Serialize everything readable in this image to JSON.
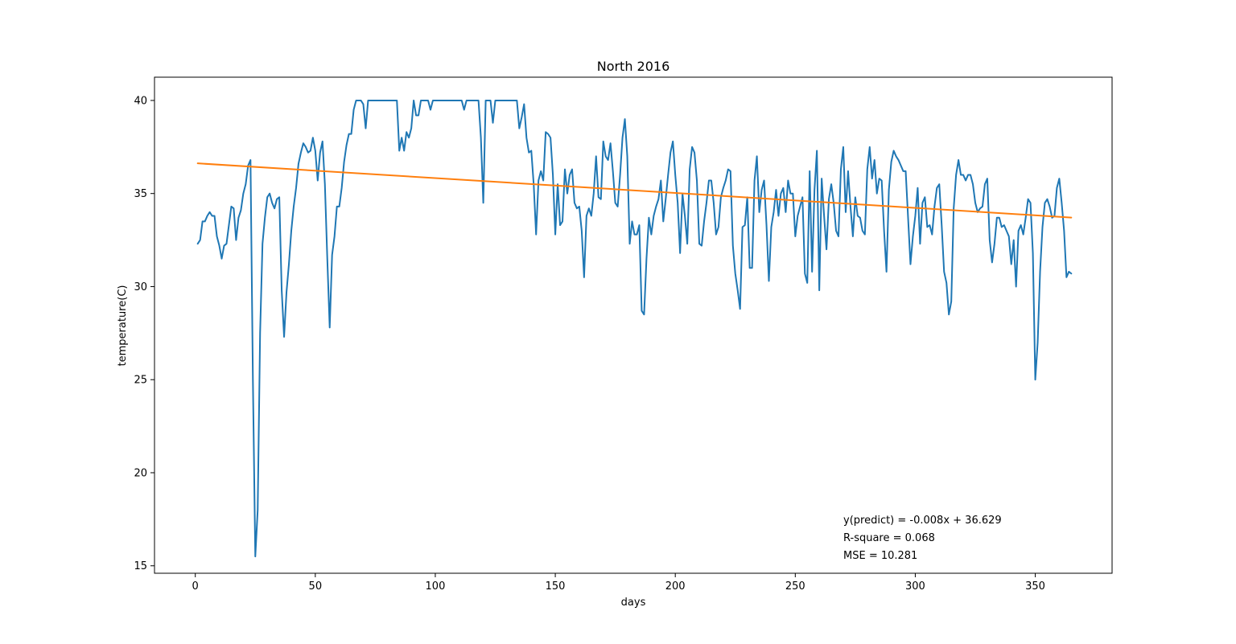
{
  "chart_data": {
    "type": "line",
    "title": "North 2016",
    "xlabel": "days",
    "ylabel": "temperature(C)",
    "xlim": [
      -17,
      382
    ],
    "ylim": [
      14.6,
      41.25
    ],
    "xticks": [
      0,
      50,
      100,
      150,
      200,
      250,
      300,
      350
    ],
    "yticks": [
      15,
      20,
      25,
      30,
      35,
      40
    ],
    "grid": false,
    "annotations": [
      "y(predict) = -0.008x + 36.629",
      "R-square = 0.068",
      "MSE = 10.281"
    ],
    "series": [
      {
        "color": "#1f77b4",
        "x": [
          1,
          2,
          3,
          4,
          5,
          6,
          7,
          8,
          9,
          10,
          11,
          12,
          13,
          14,
          15,
          16,
          17,
          18,
          19,
          20,
          21,
          22,
          23,
          24,
          25,
          26,
          27,
          28,
          29,
          30,
          31,
          32,
          33,
          34,
          35,
          36,
          37,
          38,
          39,
          40,
          41,
          42,
          43,
          44,
          45,
          46,
          47,
          48,
          49,
          50,
          51,
          52,
          53,
          54,
          55,
          56,
          57,
          58,
          59,
          60,
          61,
          62,
          63,
          64,
          65,
          66,
          67,
          68,
          69,
          70,
          71,
          72,
          73,
          74,
          75,
          76,
          77,
          78,
          79,
          80,
          81,
          82,
          83,
          84,
          85,
          86,
          87,
          88,
          89,
          90,
          91,
          92,
          93,
          94,
          95,
          96,
          97,
          98,
          99,
          100,
          101,
          102,
          103,
          104,
          105,
          106,
          107,
          108,
          109,
          110,
          111,
          112,
          113,
          114,
          115,
          116,
          117,
          118,
          119,
          120,
          121,
          122,
          123,
          124,
          125,
          126,
          127,
          128,
          129,
          130,
          131,
          132,
          133,
          134,
          135,
          136,
          137,
          138,
          139,
          140,
          141,
          142,
          143,
          144,
          145,
          146,
          147,
          148,
          149,
          150,
          151,
          152,
          153,
          154,
          155,
          156,
          157,
          158,
          159,
          160,
          161,
          162,
          163,
          164,
          165,
          166,
          167,
          168,
          169,
          170,
          171,
          172,
          173,
          174,
          175,
          176,
          177,
          178,
          179,
          180,
          181,
          182,
          183,
          184,
          185,
          186,
          187,
          188,
          189,
          190,
          191,
          192,
          193,
          194,
          195,
          196,
          197,
          198,
          199,
          200,
          201,
          202,
          203,
          204,
          205,
          206,
          207,
          208,
          209,
          210,
          211,
          212,
          213,
          214,
          215,
          216,
          217,
          218,
          219,
          220,
          221,
          222,
          223,
          224,
          225,
          226,
          227,
          228,
          229,
          230,
          231,
          232,
          233,
          234,
          235,
          236,
          237,
          238,
          239,
          240,
          241,
          242,
          243,
          244,
          245,
          246,
          247,
          248,
          249,
          250,
          251,
          252,
          253,
          254,
          255,
          256,
          257,
          258,
          259,
          260,
          261,
          262,
          263,
          264,
          265,
          266,
          267,
          268,
          269,
          270,
          271,
          272,
          273,
          274,
          275,
          276,
          277,
          278,
          279,
          280,
          281,
          282,
          283,
          284,
          285,
          286,
          287,
          288,
          289,
          290,
          291,
          292,
          293,
          294,
          295,
          296,
          297,
          298,
          299,
          300,
          301,
          302,
          303,
          304,
          305,
          306,
          307,
          308,
          309,
          310,
          311,
          312,
          313,
          314,
          315,
          316,
          317,
          318,
          319,
          320,
          321,
          322,
          323,
          324,
          325,
          326,
          327,
          328,
          329,
          330,
          331,
          332,
          333,
          334,
          335,
          336,
          337,
          338,
          339,
          340,
          341,
          342,
          343,
          344,
          345,
          346,
          347,
          348,
          349,
          350,
          351,
          352,
          353,
          354,
          355,
          356,
          357,
          358,
          359,
          360,
          361,
          362,
          363,
          364,
          365
        ],
        "y": [
          32.3,
          32.5,
          33.5,
          33.5,
          33.8,
          34.0,
          33.8,
          33.8,
          32.7,
          32.2,
          31.5,
          32.2,
          32.3,
          33.3,
          34.3,
          34.2,
          32.5,
          33.7,
          34.1,
          35.0,
          35.5,
          36.5,
          36.8,
          25.0,
          15.5,
          18.0,
          27.5,
          32.3,
          33.7,
          34.8,
          35.0,
          34.5,
          34.2,
          34.7,
          34.8,
          29.8,
          27.3,
          29.7,
          31.2,
          33.0,
          34.3,
          35.3,
          36.6,
          37.2,
          37.7,
          37.5,
          37.2,
          37.3,
          38.0,
          37.3,
          35.7,
          37.2,
          37.8,
          35.5,
          31.5,
          27.8,
          31.7,
          32.7,
          34.3,
          34.3,
          35.3,
          36.7,
          37.6,
          38.2,
          38.2,
          39.5,
          40.0,
          40.0,
          40.0,
          39.8,
          38.5,
          40.0,
          40.0,
          40.0,
          40.0,
          40.0,
          40.0,
          40.0,
          40.0,
          40.0,
          40.0,
          40.0,
          40.0,
          40.0,
          37.3,
          38.0,
          37.3,
          38.3,
          38.0,
          38.5,
          40.0,
          39.2,
          39.2,
          40.0,
          40.0,
          40.0,
          40.0,
          39.5,
          40.0,
          40.0,
          40.0,
          40.0,
          40.0,
          40.0,
          40.0,
          40.0,
          40.0,
          40.0,
          40.0,
          40.0,
          40.0,
          39.5,
          40.0,
          40.0,
          40.0,
          40.0,
          40.0,
          40.0,
          38.0,
          34.5,
          40.0,
          40.0,
          40.0,
          38.8,
          40.0,
          40.0,
          40.0,
          40.0,
          40.0,
          40.0,
          40.0,
          40.0,
          40.0,
          40.0,
          38.5,
          39.1,
          39.8,
          38.0,
          37.2,
          37.3,
          35.5,
          32.8,
          35.7,
          36.2,
          35.7,
          38.3,
          38.2,
          38.0,
          36.0,
          32.8,
          35.5,
          33.3,
          33.5,
          36.3,
          35.0,
          36.0,
          36.3,
          34.5,
          34.2,
          34.3,
          33.0,
          30.5,
          33.8,
          34.2,
          33.8,
          35.0,
          37.0,
          34.8,
          34.7,
          37.8,
          37.0,
          36.8,
          37.7,
          36.2,
          34.5,
          34.3,
          36.0,
          38.0,
          39.0,
          37.0,
          32.3,
          33.5,
          32.8,
          32.8,
          33.3,
          28.7,
          28.5,
          31.5,
          33.7,
          32.8,
          33.8,
          34.3,
          34.7,
          35.7,
          33.5,
          34.7,
          36.0,
          37.2,
          37.8,
          36.0,
          34.5,
          31.8,
          35.0,
          33.8,
          32.3,
          36.3,
          37.5,
          37.2,
          35.7,
          32.3,
          32.2,
          33.5,
          34.5,
          35.7,
          35.7,
          34.5,
          32.8,
          33.2,
          34.8,
          35.3,
          35.7,
          36.3,
          36.2,
          32.2,
          30.7,
          29.8,
          28.8,
          33.2,
          33.3,
          34.8,
          31.0,
          31.0,
          35.7,
          37.0,
          34.0,
          35.2,
          35.7,
          33.3,
          30.3,
          33.2,
          34.0,
          35.2,
          33.8,
          35.0,
          35.3,
          34.0,
          35.7,
          35.0,
          35.0,
          32.7,
          33.8,
          34.3,
          34.8,
          30.7,
          30.2,
          36.2,
          30.8,
          35.2,
          37.3,
          29.8,
          35.8,
          33.8,
          32.0,
          34.7,
          35.5,
          34.5,
          33.0,
          32.7,
          36.3,
          37.5,
          34.0,
          36.2,
          34.3,
          32.7,
          34.8,
          33.8,
          33.7,
          33.0,
          32.8,
          36.3,
          37.5,
          35.8,
          36.8,
          35.0,
          35.8,
          35.7,
          33.0,
          30.8,
          35.2,
          36.7,
          37.3,
          37.0,
          36.8,
          36.5,
          36.2,
          36.2,
          33.7,
          31.2,
          32.7,
          33.8,
          35.3,
          32.3,
          34.5,
          34.8,
          33.2,
          33.3,
          32.8,
          34.3,
          35.3,
          35.5,
          33.3,
          30.8,
          30.2,
          28.5,
          29.2,
          34.2,
          36.0,
          36.8,
          36.0,
          36.0,
          35.7,
          36.0,
          36.0,
          35.5,
          34.5,
          34.0,
          34.2,
          34.3,
          35.5,
          35.8,
          32.5,
          31.3,
          32.3,
          33.7,
          33.7,
          33.2,
          33.3,
          33.0,
          32.7,
          31.2,
          32.5,
          30.0,
          33.0,
          33.3,
          32.8,
          33.7,
          34.7,
          34.5,
          31.8,
          25.0,
          27.0,
          30.8,
          33.2,
          34.5,
          34.7,
          34.3,
          33.7,
          33.8,
          35.3,
          35.8,
          34.5,
          33.0,
          30.5,
          30.8,
          30.7
        ]
      },
      {
        "color": "#ff7f0e",
        "x": [
          1,
          365
        ],
        "y": [
          36.621,
          33.709
        ]
      }
    ]
  }
}
